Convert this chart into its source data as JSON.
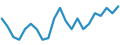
{
  "x": [
    0,
    1,
    2,
    3,
    4,
    5,
    6,
    7,
    8,
    9,
    10,
    11,
    12,
    13,
    14,
    15,
    16,
    17,
    18,
    19,
    20
  ],
  "y": [
    7.5,
    6.0,
    4.0,
    3.5,
    5.5,
    6.5,
    5.5,
    3.5,
    3.8,
    7.5,
    9.5,
    7.0,
    5.5,
    7.5,
    5.5,
    6.5,
    8.5,
    8.0,
    9.5,
    8.5,
    9.8
  ],
  "line_color": "#2a8fc4",
  "linewidth": 1.6,
  "background_color": "#ffffff",
  "ylim": [
    2.5,
    11.0
  ],
  "xlim": [
    -0.3,
    20.3
  ]
}
